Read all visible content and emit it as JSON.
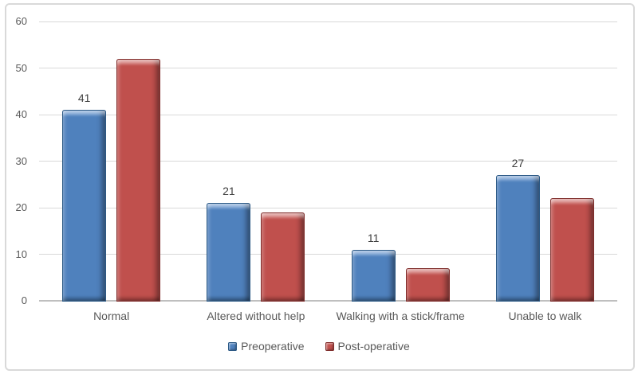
{
  "chart": {
    "background_color": "#FFFFFF",
    "frame_border_color": "#D9D9D9",
    "gridline_color": "#D9D9D9",
    "axis_line_color": "#BFBFBF",
    "tick_label_color": "#595959",
    "category_label_color": "#595959",
    "data_label_color": "#404040",
    "legend_text_color": "#595959"
  },
  "chart_data": {
    "type": "bar",
    "title": "",
    "xlabel": "",
    "ylabel": "",
    "categories": [
      "Normal",
      "Altered without help",
      "Walking with a stick/frame",
      "Unable to walk"
    ],
    "series": [
      {
        "name": "Preoperative",
        "values": [
          41,
          21,
          11,
          27
        ],
        "show_data_labels": true,
        "data_labels": [
          "41",
          "21",
          "11",
          "27"
        ],
        "color": "#4F81BD",
        "color_light": "#7DA7DB",
        "color_dark": "#3A6597",
        "edge_color": "#2C5985"
      },
      {
        "name": "Post-operative",
        "values": [
          52,
          19,
          7,
          22
        ],
        "show_data_labels": false,
        "data_labels": [],
        "color": "#C0504D",
        "color_light": "#D98683",
        "color_dark": "#9E3F3C",
        "edge_color": "#7F2D2B"
      }
    ],
    "ylim": [
      0,
      60
    ],
    "yticks": [
      "0",
      "10",
      "20",
      "30",
      "40",
      "50",
      "60"
    ],
    "grid": "horizontal",
    "legend_position": "bottom"
  }
}
